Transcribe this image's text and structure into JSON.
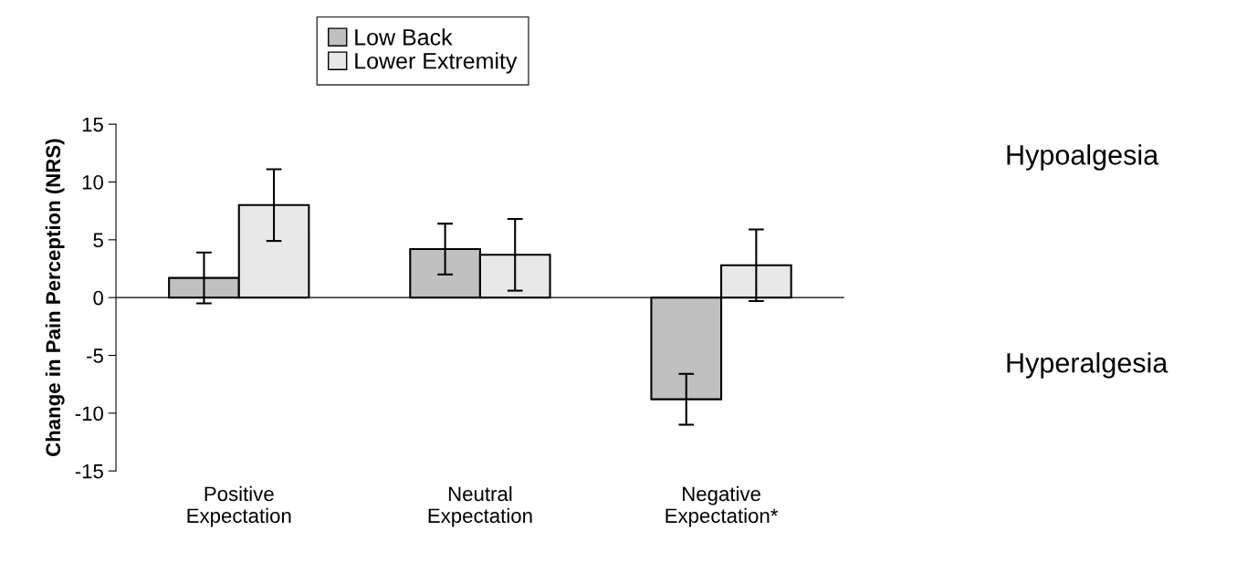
{
  "chart_data": {
    "type": "bar",
    "ylabel": "Change in Pain Perception (NRS)",
    "categories": [
      "Positive\nExpectation",
      "Neutral\nExpectation",
      "Negative\nExpectation*"
    ],
    "series": [
      {
        "name": "Low Back",
        "color": "#c0c0c0",
        "values": [
          1.7,
          4.2,
          -8.8
        ],
        "errors": [
          2.2,
          2.2,
          2.2
        ]
      },
      {
        "name": "Lower Extremity",
        "color": "#e8e8e8",
        "values": [
          8.0,
          3.7,
          2.8
        ],
        "errors": [
          3.1,
          3.1,
          3.1
        ]
      }
    ],
    "ylim": [
      -15,
      15
    ],
    "yticks": [
      -15,
      -10,
      -5,
      0,
      5,
      10,
      15
    ],
    "ref_lines": [
      {
        "axis": "y",
        "value": 0,
        "color": "#000000"
      }
    ],
    "legend": "top",
    "grid": false,
    "annotations": [
      "Hypoalgesia",
      "Hyperalgesia"
    ]
  }
}
